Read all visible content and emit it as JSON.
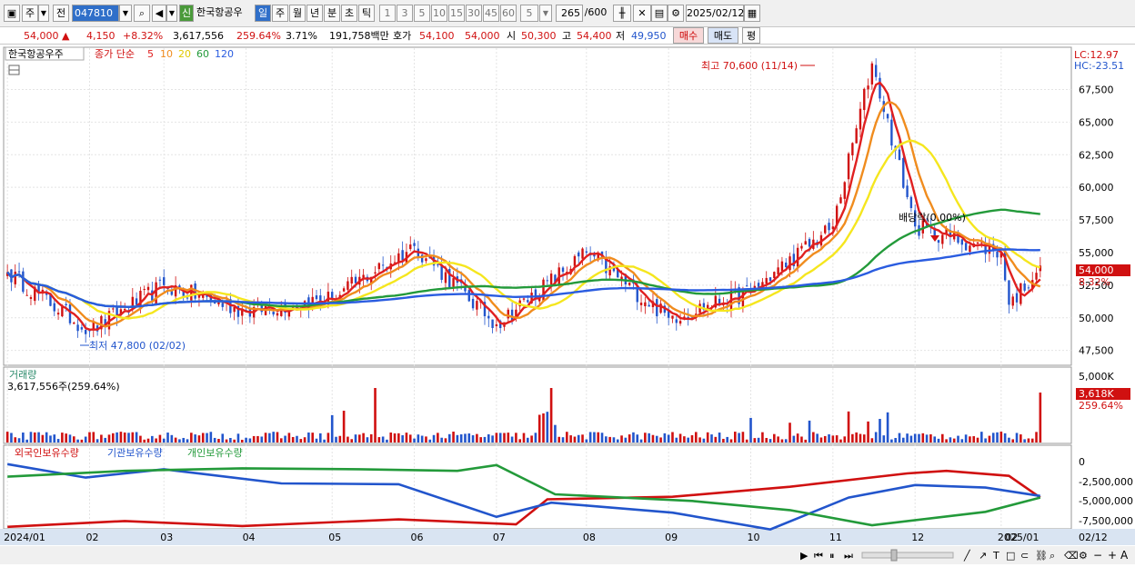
{
  "toolbar": {
    "market": "주",
    "prev": "전",
    "code": "047810",
    "stock_name": "한국항공우",
    "badge": "신",
    "periods": [
      "일",
      "주",
      "월",
      "년",
      "분",
      "초",
      "틱"
    ],
    "intervals": [
      "1",
      "3",
      "5",
      "10",
      "15",
      "30",
      "45",
      "60"
    ],
    "interval_selected": "5",
    "count": "265",
    "count_total": "/600",
    "date": "2025/02/12"
  },
  "quote": {
    "price": "54,000",
    "change": "4,150",
    "change_pct": "+8.32%",
    "volume": "3,617,556",
    "volume_ratio": "259.64%",
    "turnover": "3.71%",
    "amount": "191,758백만",
    "bid_label": "호가",
    "bid1": "54,100",
    "bid2": "54,000",
    "open_label": "시",
    "open": "50,300",
    "high_label": "고",
    "high": "54,400",
    "low_label": "저",
    "low": "49,950",
    "buy_label": "매수",
    "sell_label": "매도",
    "avg_label": "평"
  },
  "legend": {
    "name": "한국항공우주",
    "type": "종가 단순",
    "ma": [
      "5",
      "10",
      "20",
      "60",
      "120"
    ]
  },
  "annotations": {
    "high": "최고 70,600 (11/14)",
    "low": "최저 47,800 (02/02)",
    "dividend": "배당락(0.00%)",
    "lc": "LC:12.97",
    "hc": "HC:-23.51"
  },
  "price_axis": {
    "labels": [
      "67,500",
      "65,000",
      "62,500",
      "60,000",
      "57,500",
      "55,000",
      "52,500",
      "50,000",
      "47,500"
    ],
    "current": "54,000",
    "current_pct": "8.32%"
  },
  "volume_panel": {
    "title": "거래량",
    "value": "3,617,556주(259.64%)",
    "axis": [
      "5,000K"
    ],
    "current": "3,618K",
    "current_pct": "259.64%"
  },
  "holdings_panel": {
    "series": [
      "외국인보유수량",
      "기관보유수량",
      "개인보유수량"
    ],
    "axis": [
      "0",
      "-2,500,000",
      "-5,000,000",
      "-7,500,000"
    ]
  },
  "x_axis": [
    "2024/01",
    "02",
    "03",
    "04",
    "05",
    "06",
    "07",
    "08",
    "09",
    "10",
    "11",
    "12",
    "2025/01",
    "02",
    "02/12"
  ],
  "colors": {
    "up": "#d01010",
    "down": "#2255cc",
    "ma5": "#e02020",
    "ma10": "#f08c1e",
    "ma20": "#f5e61e",
    "ma60": "#239a3a",
    "ma120": "#2a5ce0"
  },
  "chart_data": {
    "type": "candlestick",
    "x": [
      "2024-01-02",
      "2024-02-02",
      "2024-03-01",
      "2024-04-01",
      "2024-05-02",
      "2024-06-03",
      "2024-07-01",
      "2024-08-01",
      "2024-09-02",
      "2024-10-02",
      "2024-11-01",
      "2024-11-14",
      "2024-12-02",
      "2025-01-02",
      "2025-02-03",
      "2025-02-12"
    ],
    "close": [
      53500,
      49000,
      52500,
      50500,
      51500,
      55500,
      49500,
      55000,
      50000,
      52000,
      57000,
      69500,
      57000,
      55000,
      51000,
      54000
    ],
    "ylim": [
      46500,
      70600
    ],
    "high_point": {
      "date": "11/14",
      "value": 70600
    },
    "low_point": {
      "date": "02/02",
      "value": 47800
    }
  }
}
